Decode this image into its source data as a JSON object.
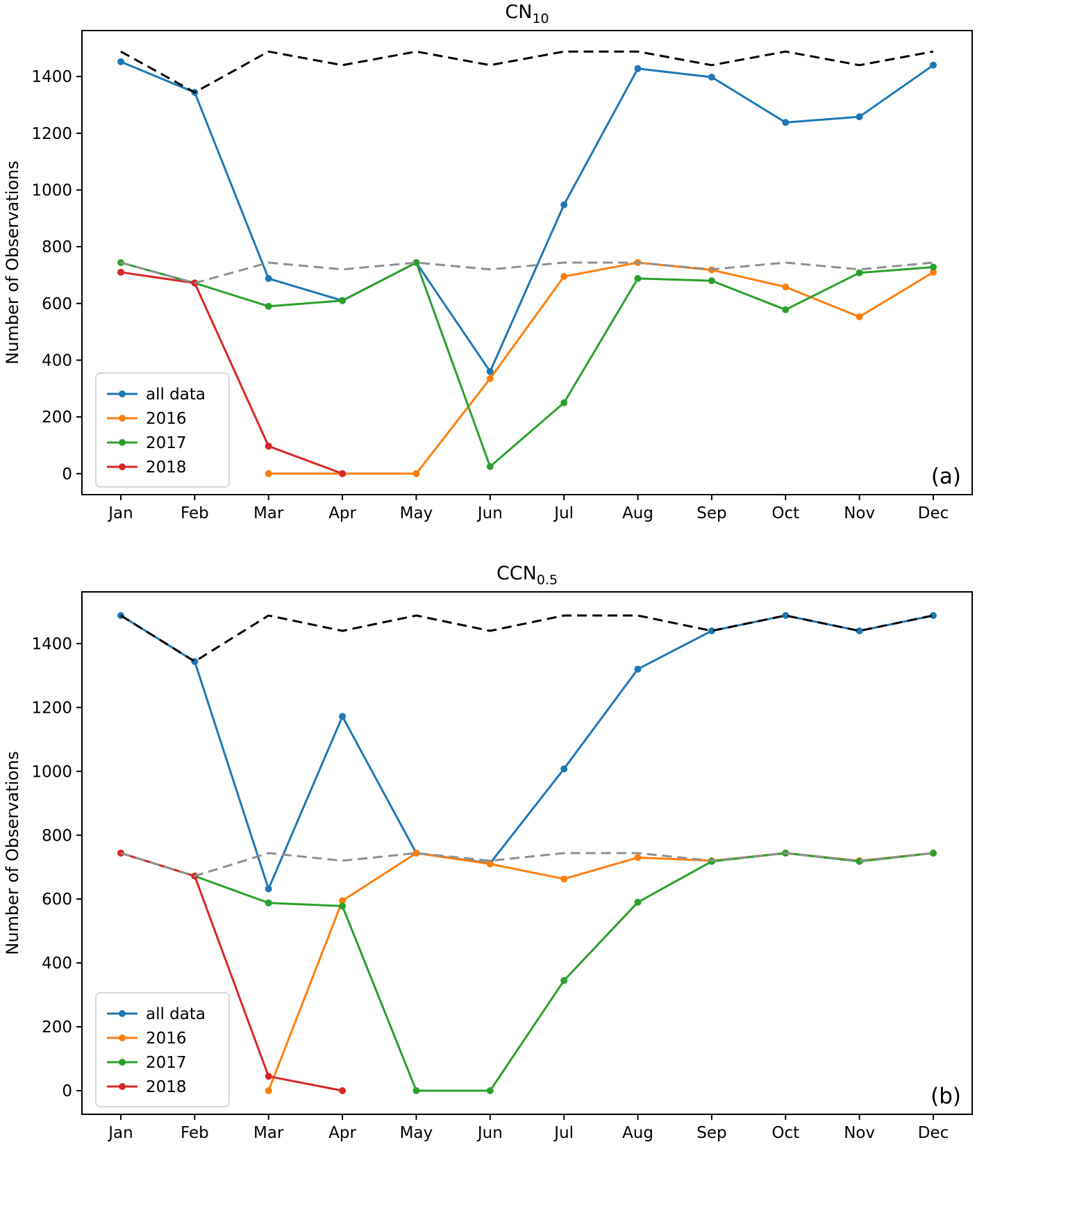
{
  "figure": {
    "ylabel": "Number of Observations",
    "months": [
      "Jan",
      "Feb",
      "Mar",
      "Apr",
      "May",
      "Jun",
      "Jul",
      "Aug",
      "Sep",
      "Oct",
      "Nov",
      "Dec"
    ]
  },
  "chart_data": [
    {
      "type": "line",
      "title_main": "CN",
      "title_sub": "10",
      "panel_label": "(a)",
      "ylabel": "Number of Observations",
      "categories": [
        "Jan",
        "Feb",
        "Mar",
        "Apr",
        "May",
        "Jun",
        "Jul",
        "Aug",
        "Sep",
        "Oct",
        "Nov",
        "Dec"
      ],
      "ylim": [
        -74,
        1562
      ],
      "yticks": [
        0,
        200,
        400,
        600,
        800,
        1000,
        1200,
        1400
      ],
      "legend_position": "lower left",
      "grid": false,
      "series": [
        {
          "name": "all data",
          "color": "#1f77b4",
          "dashed": false,
          "marker": true,
          "in_legend": true,
          "values": [
            1452,
            1344,
            688,
            610,
            744,
            360,
            948,
            1428,
            1398,
            1238,
            1258,
            1440
          ]
        },
        {
          "name": "2016",
          "color": "#ff7f0e",
          "dashed": false,
          "marker": true,
          "in_legend": true,
          "values": [
            null,
            null,
            0,
            0,
            0,
            335,
            695,
            744,
            718,
            658,
            553,
            710
          ]
        },
        {
          "name": "2017",
          "color": "#2ca02c",
          "dashed": false,
          "marker": true,
          "in_legend": true,
          "values": [
            744,
            672,
            590,
            610,
            744,
            25,
            250,
            688,
            680,
            578,
            708,
            728
          ]
        },
        {
          "name": "2018",
          "color": "#d62728",
          "dashed": false,
          "marker": true,
          "in_legend": true,
          "values": [
            710,
            672,
            97,
            0,
            null,
            null,
            null,
            null,
            null,
            null,
            null,
            null
          ]
        },
        {
          "name": "gray-dashed",
          "color": "#909090",
          "dashed": true,
          "marker": false,
          "in_legend": false,
          "values": [
            744,
            672,
            744,
            720,
            744,
            720,
            744,
            744,
            720,
            744,
            720,
            744
          ]
        },
        {
          "name": "black-dashed",
          "color": "#000000",
          "dashed": true,
          "marker": false,
          "in_legend": false,
          "values": [
            1488,
            1344,
            1488,
            1440,
            1488,
            1440,
            1488,
            1488,
            1440,
            1488,
            1440,
            1488
          ]
        }
      ]
    },
    {
      "type": "line",
      "title_main": "CCN",
      "title_sub": "0.5",
      "panel_label": "(b)",
      "ylabel": "Number of Observations",
      "categories": [
        "Jan",
        "Feb",
        "Mar",
        "Apr",
        "May",
        "Jun",
        "Jul",
        "Aug",
        "Sep",
        "Oct",
        "Nov",
        "Dec"
      ],
      "ylim": [
        -74,
        1562
      ],
      "yticks": [
        0,
        200,
        400,
        600,
        800,
        1000,
        1200,
        1400
      ],
      "legend_position": "lower left",
      "grid": false,
      "series": [
        {
          "name": "all data",
          "color": "#1f77b4",
          "dashed": false,
          "marker": true,
          "in_legend": true,
          "values": [
            1488,
            1344,
            632,
            1172,
            744,
            712,
            1008,
            1320,
            1440,
            1488,
            1440,
            1488
          ]
        },
        {
          "name": "2016",
          "color": "#ff7f0e",
          "dashed": false,
          "marker": true,
          "in_legend": true,
          "values": [
            null,
            null,
            0,
            595,
            744,
            710,
            663,
            730,
            720,
            744,
            720,
            744
          ]
        },
        {
          "name": "2017",
          "color": "#2ca02c",
          "dashed": false,
          "marker": true,
          "in_legend": true,
          "values": [
            744,
            672,
            588,
            578,
            0,
            0,
            345,
            590,
            718,
            744,
            718,
            744
          ]
        },
        {
          "name": "2018",
          "color": "#d62728",
          "dashed": false,
          "marker": true,
          "in_legend": true,
          "values": [
            744,
            672,
            45,
            0,
            null,
            null,
            null,
            null,
            null,
            null,
            null,
            null
          ]
        },
        {
          "name": "gray-dashed",
          "color": "#909090",
          "dashed": true,
          "marker": false,
          "in_legend": false,
          "values": [
            744,
            672,
            744,
            720,
            744,
            720,
            744,
            744,
            720,
            744,
            720,
            744
          ]
        },
        {
          "name": "black-dashed",
          "color": "#000000",
          "dashed": true,
          "marker": false,
          "in_legend": false,
          "values": [
            1488,
            1344,
            1488,
            1440,
            1488,
            1440,
            1488,
            1488,
            1440,
            1488,
            1440,
            1488
          ]
        }
      ]
    }
  ]
}
